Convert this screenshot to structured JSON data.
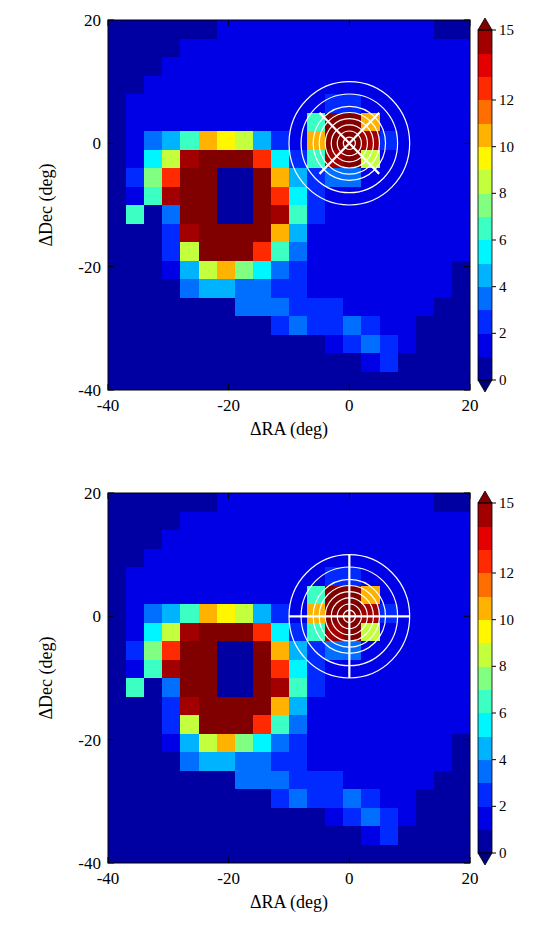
{
  "chart_data": [
    {
      "type": "heatmap",
      "xlabel": "ΔRA (deg)",
      "ylabel": "ΔDec (deg)",
      "xlim": [
        -40,
        20
      ],
      "ylim": [
        -40,
        20
      ],
      "xticks": [
        -40,
        -20,
        0,
        20
      ],
      "yticks": [
        -40,
        -20,
        0,
        20
      ],
      "x_edges": [
        -40,
        -37,
        -34,
        -31,
        -28,
        -25,
        -22,
        -19,
        -16,
        -13,
        -10,
        -7,
        -4,
        -1,
        2,
        5,
        8,
        11,
        14,
        17,
        20
      ],
      "y_edges": [
        20,
        17,
        14,
        11,
        8,
        5,
        2,
        -1,
        -4,
        -7,
        -10,
        -13,
        -16,
        -19,
        -22,
        -25,
        -28,
        -31,
        -34,
        -37,
        -40
      ],
      "cells": [
        [
          0,
          0,
          0,
          0,
          0,
          0,
          1,
          1,
          1,
          1,
          1,
          1,
          1,
          1,
          1,
          1,
          1,
          1,
          0,
          0
        ],
        [
          0,
          0,
          0,
          0,
          1,
          1,
          1,
          1,
          1,
          1,
          1,
          1,
          1,
          1,
          1,
          1,
          1,
          1,
          1,
          1
        ],
        [
          0,
          0,
          0,
          1,
          1,
          1,
          1,
          1,
          1,
          1,
          1,
          1,
          1,
          1,
          1,
          1,
          1,
          1,
          1,
          1
        ],
        [
          0,
          0,
          1,
          1,
          1,
          1,
          1,
          1,
          1,
          1,
          1,
          1,
          1,
          1,
          1,
          1,
          1,
          1,
          1,
          1
        ],
        [
          0,
          1,
          1,
          1,
          1,
          1,
          1,
          1,
          1,
          1,
          1,
          1,
          2,
          2,
          1,
          1,
          1,
          1,
          1,
          1
        ],
        [
          0,
          1,
          1,
          1,
          1,
          1,
          1,
          1,
          1,
          1,
          1,
          6,
          16,
          16,
          10,
          1,
          1,
          1,
          1,
          1
        ],
        [
          0,
          1,
          3,
          4,
          6,
          10,
          9,
          8,
          4,
          2,
          1,
          10,
          16,
          16,
          14,
          2,
          1,
          1,
          1,
          1
        ],
        [
          0,
          1,
          5,
          8,
          14,
          16,
          16,
          16,
          12,
          5,
          2,
          6,
          14,
          16,
          8,
          1,
          1,
          1,
          1,
          1
        ],
        [
          0,
          2,
          7,
          12,
          16,
          16,
          0,
          0,
          16,
          10,
          4,
          2,
          3,
          3,
          1,
          1,
          1,
          1,
          1,
          1
        ],
        [
          0,
          1,
          6,
          14,
          16,
          16,
          0,
          0,
          16,
          12,
          5,
          2,
          1,
          1,
          1,
          1,
          1,
          1,
          1,
          1
        ],
        [
          0,
          6,
          0,
          3,
          16,
          16,
          0,
          0,
          16,
          14,
          6,
          2,
          1,
          1,
          1,
          1,
          1,
          1,
          1,
          1
        ],
        [
          0,
          0,
          0,
          2,
          14,
          16,
          16,
          16,
          16,
          10,
          4,
          1,
          1,
          1,
          1,
          1,
          1,
          1,
          1,
          1
        ],
        [
          0,
          0,
          0,
          2,
          8,
          16,
          16,
          16,
          12,
          6,
          3,
          1,
          1,
          1,
          1,
          1,
          1,
          1,
          1,
          1
        ],
        [
          0,
          0,
          0,
          1,
          4,
          8,
          10,
          7,
          5,
          3,
          2,
          1,
          1,
          1,
          1,
          1,
          1,
          1,
          1,
          0
        ],
        [
          0,
          0,
          0,
          0,
          3,
          4,
          4,
          3,
          3,
          2,
          2,
          1,
          1,
          1,
          1,
          1,
          1,
          1,
          1,
          0
        ],
        [
          0,
          0,
          0,
          0,
          0,
          0,
          0,
          3,
          3,
          3,
          2,
          2,
          2,
          1,
          1,
          1,
          1,
          1,
          0,
          0
        ],
        [
          0,
          0,
          0,
          0,
          0,
          0,
          0,
          0,
          0,
          2,
          3,
          2,
          2,
          3,
          2,
          1,
          1,
          0,
          0,
          0
        ],
        [
          0,
          0,
          0,
          0,
          0,
          0,
          0,
          0,
          0,
          0,
          0,
          0,
          1,
          2,
          3,
          2,
          1,
          0,
          0,
          0
        ],
        [
          0,
          0,
          0,
          0,
          0,
          0,
          0,
          0,
          0,
          0,
          0,
          0,
          0,
          0,
          1,
          2,
          0,
          0,
          0,
          0
        ],
        [
          0,
          0,
          0,
          0,
          0,
          0,
          0,
          0,
          0,
          0,
          0,
          0,
          0,
          0,
          0,
          0,
          0,
          0,
          0,
          0
        ]
      ],
      "colorbar_range": [
        0,
        15
      ],
      "colorbar_ticks": [
        0,
        2,
        4,
        6,
        8,
        10,
        12,
        15
      ],
      "ring_radii": [
        1,
        2,
        3,
        4,
        5,
        6,
        8,
        10
      ],
      "spoke_angles": [
        45,
        135,
        225,
        315
      ],
      "spoke_length": 7
    },
    {
      "type": "heatmap",
      "xlabel": "ΔRA (deg)",
      "ylabel": "ΔDec (deg)",
      "xlim": [
        -40,
        20
      ],
      "ylim": [
        -40,
        20
      ],
      "xticks": [
        -40,
        -20,
        0,
        20
      ],
      "yticks": [
        -40,
        -20,
        0,
        20
      ],
      "x_edges": [
        -40,
        -37,
        -34,
        -31,
        -28,
        -25,
        -22,
        -19,
        -16,
        -13,
        -10,
        -7,
        -4,
        -1,
        2,
        5,
        8,
        11,
        14,
        17,
        20
      ],
      "y_edges": [
        20,
        17,
        14,
        11,
        8,
        5,
        2,
        -1,
        -4,
        -7,
        -10,
        -13,
        -16,
        -19,
        -22,
        -25,
        -28,
        -31,
        -34,
        -37,
        -40
      ],
      "cells": [
        [
          0,
          0,
          0,
          0,
          0,
          0,
          1,
          1,
          1,
          1,
          1,
          1,
          1,
          1,
          1,
          1,
          1,
          1,
          0,
          0
        ],
        [
          0,
          0,
          0,
          0,
          1,
          1,
          1,
          1,
          1,
          1,
          1,
          1,
          1,
          1,
          1,
          1,
          1,
          1,
          1,
          1
        ],
        [
          0,
          0,
          0,
          1,
          1,
          1,
          1,
          1,
          1,
          1,
          1,
          1,
          1,
          1,
          1,
          1,
          1,
          1,
          1,
          1
        ],
        [
          0,
          0,
          1,
          1,
          1,
          1,
          1,
          1,
          1,
          1,
          1,
          1,
          1,
          1,
          1,
          1,
          1,
          1,
          1,
          1
        ],
        [
          0,
          1,
          1,
          1,
          1,
          1,
          1,
          1,
          1,
          1,
          1,
          1,
          2,
          2,
          1,
          1,
          1,
          1,
          1,
          1
        ],
        [
          0,
          1,
          1,
          1,
          1,
          1,
          1,
          1,
          1,
          1,
          1,
          6,
          16,
          16,
          10,
          1,
          1,
          1,
          1,
          1
        ],
        [
          0,
          1,
          3,
          4,
          6,
          10,
          9,
          8,
          4,
          2,
          1,
          10,
          16,
          16,
          14,
          2,
          1,
          1,
          1,
          1
        ],
        [
          0,
          1,
          5,
          8,
          14,
          16,
          16,
          16,
          12,
          5,
          2,
          6,
          14,
          16,
          8,
          1,
          1,
          1,
          1,
          1
        ],
        [
          0,
          2,
          7,
          12,
          16,
          16,
          0,
          0,
          16,
          10,
          4,
          2,
          3,
          3,
          1,
          1,
          1,
          1,
          1,
          1
        ],
        [
          0,
          1,
          6,
          14,
          16,
          16,
          0,
          0,
          16,
          12,
          5,
          2,
          1,
          1,
          1,
          1,
          1,
          1,
          1,
          1
        ],
        [
          0,
          6,
          0,
          3,
          16,
          16,
          0,
          0,
          16,
          14,
          6,
          2,
          1,
          1,
          1,
          1,
          1,
          1,
          1,
          1
        ],
        [
          0,
          0,
          0,
          2,
          14,
          16,
          16,
          16,
          16,
          10,
          4,
          1,
          1,
          1,
          1,
          1,
          1,
          1,
          1,
          1
        ],
        [
          0,
          0,
          0,
          2,
          8,
          16,
          16,
          16,
          12,
          6,
          3,
          1,
          1,
          1,
          1,
          1,
          1,
          1,
          1,
          1
        ],
        [
          0,
          0,
          0,
          1,
          4,
          8,
          10,
          7,
          5,
          3,
          2,
          1,
          1,
          1,
          1,
          1,
          1,
          1,
          1,
          0
        ],
        [
          0,
          0,
          0,
          0,
          3,
          4,
          4,
          3,
          3,
          2,
          2,
          1,
          1,
          1,
          1,
          1,
          1,
          1,
          1,
          0
        ],
        [
          0,
          0,
          0,
          0,
          0,
          0,
          0,
          3,
          3,
          3,
          2,
          2,
          2,
          1,
          1,
          1,
          1,
          1,
          0,
          0
        ],
        [
          0,
          0,
          0,
          0,
          0,
          0,
          0,
          0,
          0,
          2,
          3,
          2,
          2,
          3,
          2,
          1,
          1,
          0,
          0,
          0
        ],
        [
          0,
          0,
          0,
          0,
          0,
          0,
          0,
          0,
          0,
          0,
          0,
          0,
          1,
          2,
          3,
          2,
          1,
          0,
          0,
          0
        ],
        [
          0,
          0,
          0,
          0,
          0,
          0,
          0,
          0,
          0,
          0,
          0,
          0,
          0,
          0,
          1,
          2,
          0,
          0,
          0,
          0
        ],
        [
          0,
          0,
          0,
          0,
          0,
          0,
          0,
          0,
          0,
          0,
          0,
          0,
          0,
          0,
          0,
          0,
          0,
          0,
          0,
          0
        ]
      ],
      "colorbar_range": [
        0,
        15
      ],
      "colorbar_ticks": [
        0,
        2,
        4,
        6,
        8,
        10,
        12,
        15
      ],
      "ring_radii": [
        1,
        2,
        3,
        4,
        5,
        6,
        8,
        10
      ],
      "spoke_angles": [
        0,
        90,
        180,
        270
      ],
      "spoke_length": 10
    }
  ]
}
